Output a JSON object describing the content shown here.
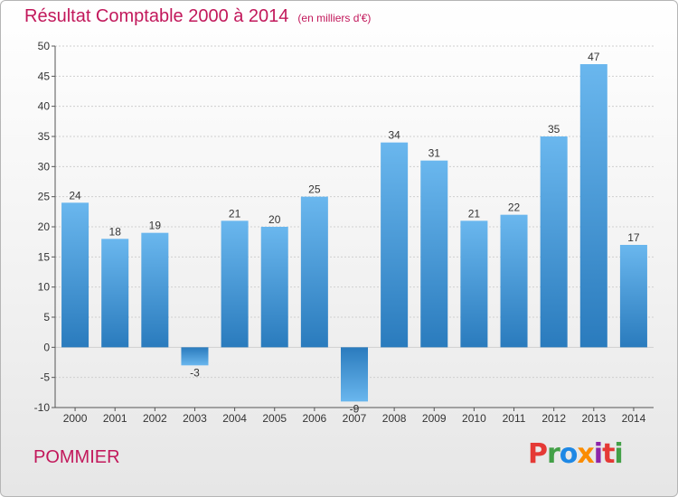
{
  "header": {
    "title": "Résultat Comptable 2000 à 2014",
    "subtitle": "(en milliers d'€)"
  },
  "footer": {
    "commune": "POMMIER",
    "brand_letters": [
      "P",
      "r",
      "o",
      "x",
      "i",
      "t",
      "i"
    ]
  },
  "colors": {
    "title": "#c2185b",
    "bar_light": "#6ab7ee",
    "bar_dark": "#2a7bbd",
    "bar_neg_light": "#2a7bbd",
    "bar_neg_dark": "#6ab7ee",
    "grid": "#cfcfcf",
    "axis": "#555555"
  },
  "chart_data": {
    "type": "bar",
    "categories": [
      "2000",
      "2001",
      "2002",
      "2003",
      "2004",
      "2005",
      "2006",
      "2007",
      "2008",
      "2009",
      "2010",
      "2011",
      "2012",
      "2013",
      "2014"
    ],
    "values": [
      24,
      18,
      19,
      -3,
      21,
      20,
      25,
      -9,
      34,
      31,
      21,
      22,
      35,
      47,
      17
    ],
    "ylim": [
      -10,
      50
    ],
    "yticks": [
      -10,
      -5,
      0,
      5,
      10,
      15,
      20,
      25,
      30,
      35,
      40,
      45,
      50
    ],
    "grid": true,
    "legend": "none"
  }
}
